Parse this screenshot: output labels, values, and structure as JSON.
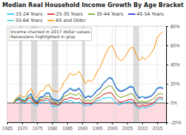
{
  "chart_data": {
    "type": "line",
    "title": "Median Real Household Income Growth By Age Bracket",
    "annotation": "Income chained in 2017 dollar values\nRecessions highlighted in gray",
    "x": [
      1967,
      1968,
      1969,
      1970,
      1971,
      1972,
      1973,
      1974,
      1975,
      1976,
      1977,
      1978,
      1979,
      1980,
      1981,
      1982,
      1983,
      1984,
      1985,
      1986,
      1987,
      1988,
      1989,
      1990,
      1991,
      1992,
      1993,
      1994,
      1995,
      1996,
      1997,
      1998,
      1999,
      2000,
      2001,
      2002,
      2003,
      2004,
      2005,
      2006,
      2007,
      2008,
      2009,
      2010,
      2011,
      2012,
      2013,
      2014,
      2015,
      2016,
      2017
    ],
    "series": [
      {
        "name": "15-24 Years",
        "color": "#00BFFF",
        "values": [
          0,
          2,
          3,
          1,
          -1,
          3,
          2,
          -2,
          -3,
          1,
          0,
          3,
          2,
          -4,
          -3,
          -3,
          -1,
          2,
          1,
          3,
          1,
          0,
          1,
          -1,
          -3,
          -2,
          -2,
          0,
          3,
          3,
          5,
          5,
          6,
          5,
          1,
          -2,
          -1,
          0,
          1,
          2,
          0,
          -4,
          -6,
          -4,
          -5,
          -4,
          -3,
          -1,
          3,
          4,
          3
        ]
      },
      {
        "name": "25-35 Years",
        "color": "#CC0000",
        "values": [
          0,
          3,
          4,
          2,
          1,
          5,
          5,
          1,
          -1,
          3,
          2,
          5,
          4,
          -1,
          -1,
          -2,
          0,
          4,
          4,
          6,
          5,
          4,
          5,
          2,
          -1,
          0,
          -1,
          2,
          5,
          6,
          9,
          10,
          11,
          10,
          5,
          2,
          1,
          2,
          3,
          4,
          3,
          -2,
          -4,
          -2,
          -3,
          -2,
          -1,
          1,
          5,
          6,
          5
        ]
      },
      {
        "name": "35-44 Years",
        "color": "#669900",
        "values": [
          0,
          3,
          5,
          3,
          2,
          6,
          7,
          2,
          0,
          4,
          4,
          7,
          7,
          2,
          1,
          0,
          2,
          7,
          8,
          10,
          9,
          8,
          10,
          6,
          2,
          3,
          2,
          5,
          8,
          10,
          14,
          16,
          18,
          17,
          11,
          7,
          6,
          7,
          8,
          10,
          9,
          4,
          1,
          2,
          1,
          2,
          3,
          5,
          9,
          10,
          9
        ]
      },
      {
        "name": "45-54 Years",
        "color": "#0000CC",
        "values": [
          0,
          4,
          6,
          4,
          3,
          8,
          9,
          3,
          1,
          6,
          6,
          10,
          10,
          4,
          3,
          2,
          4,
          10,
          12,
          15,
          13,
          13,
          15,
          10,
          5,
          7,
          6,
          9,
          13,
          15,
          20,
          23,
          26,
          25,
          18,
          13,
          12,
          13,
          15,
          17,
          16,
          9,
          5,
          7,
          5,
          6,
          7,
          10,
          15,
          16,
          15
        ]
      },
      {
        "name": "55-64 Years",
        "color": "#33CCCC",
        "values": [
          0,
          4,
          6,
          4,
          3,
          8,
          10,
          4,
          2,
          7,
          7,
          11,
          11,
          5,
          4,
          3,
          5,
          11,
          13,
          16,
          14,
          14,
          16,
          11,
          6,
          8,
          7,
          10,
          14,
          16,
          21,
          24,
          27,
          26,
          19,
          14,
          13,
          14,
          16,
          18,
          17,
          10,
          6,
          7,
          6,
          7,
          8,
          11,
          16,
          17,
          16
        ]
      },
      {
        "name": "65 and Older",
        "color": "#FF8C00",
        "values": [
          0,
          5,
          8,
          7,
          6,
          12,
          15,
          8,
          5,
          12,
          13,
          18,
          19,
          13,
          12,
          12,
          15,
          22,
          26,
          31,
          29,
          30,
          33,
          27,
          20,
          24,
          22,
          26,
          33,
          37,
          45,
          52,
          58,
          60,
          52,
          46,
          44,
          47,
          52,
          57,
          58,
          50,
          44,
          48,
          45,
          48,
          52,
          57,
          68,
          72,
          74
        ]
      }
    ],
    "recession_spans": [
      [
        1969,
        1970
      ],
      [
        1973,
        1975
      ],
      [
        1980,
        1982
      ],
      [
        1990,
        1991
      ],
      [
        2001,
        2001
      ],
      [
        2007,
        2009
      ]
    ],
    "xlim": [
      1965,
      2018
    ],
    "xticks": [
      1965,
      1970,
      1975,
      1980,
      1985,
      1990,
      1995,
      2000,
      2005,
      2010,
      2015
    ],
    "ylim": [
      -20,
      80
    ],
    "yticks": [
      {
        "value": -20,
        "label": "-20%"
      },
      {
        "value": 0,
        "label": "0%"
      },
      {
        "value": 20,
        "label": "20%"
      },
      {
        "value": 40,
        "label": "40%"
      },
      {
        "value": 60,
        "label": "60%"
      },
      {
        "value": 80,
        "label": "80%"
      }
    ],
    "grid": true
  }
}
